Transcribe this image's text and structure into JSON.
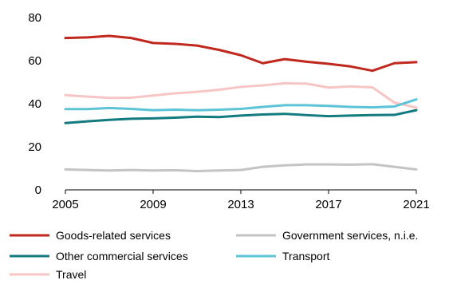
{
  "chart_data": {
    "type": "line",
    "x": [
      2005,
      2006,
      2007,
      2008,
      2009,
      2010,
      2011,
      2012,
      2013,
      2014,
      2015,
      2016,
      2017,
      2018,
      2019,
      2020,
      2021
    ],
    "series": [
      {
        "name": "Goods-related services",
        "color": "#c0281e",
        "values": [
          70.5,
          70.8,
          71.5,
          70.5,
          68.2,
          67.8,
          67.0,
          65.0,
          62.5,
          58.8,
          60.7,
          59.5,
          58.5,
          57.3,
          55.3,
          58.8,
          59.3
        ]
      },
      {
        "name": "Government services, n.i.e.",
        "color": "#c4c4c4",
        "values": [
          9.5,
          9.2,
          9.0,
          9.2,
          9.0,
          9.1,
          8.7,
          9.0,
          9.2,
          10.7,
          11.4,
          11.8,
          11.8,
          11.7,
          11.9,
          10.7,
          9.5
        ]
      },
      {
        "name": "Other commercial services",
        "color": "#137a7f",
        "values": [
          31.0,
          31.8,
          32.5,
          33.0,
          33.2,
          33.5,
          34.0,
          33.8,
          34.5,
          35.0,
          35.3,
          34.7,
          34.2,
          34.5,
          34.7,
          34.8,
          37.0
        ]
      },
      {
        "name": "Transport",
        "color": "#5cc4d6",
        "values": [
          37.5,
          37.5,
          38.0,
          37.6,
          37.0,
          37.2,
          37.0,
          37.2,
          37.6,
          38.5,
          39.3,
          39.3,
          39.0,
          38.5,
          38.3,
          38.7,
          42.0
        ]
      },
      {
        "name": "Travel",
        "color": "#f7c6c4",
        "values": [
          44.0,
          43.3,
          42.7,
          42.8,
          43.8,
          44.8,
          45.5,
          46.5,
          47.8,
          48.5,
          49.5,
          49.3,
          47.5,
          48.0,
          47.6,
          40.5,
          38.2
        ]
      }
    ],
    "x_ticks": [
      "2005",
      "2009",
      "2013",
      "2017",
      "2021"
    ],
    "y_ticks": [
      "0",
      "20",
      "40",
      "60",
      "80"
    ],
    "xlim": [
      2005,
      2021
    ],
    "ylim": [
      0,
      80
    ],
    "grid": false,
    "legend_position": "bottom",
    "title": "",
    "xlabel": "",
    "ylabel": ""
  }
}
